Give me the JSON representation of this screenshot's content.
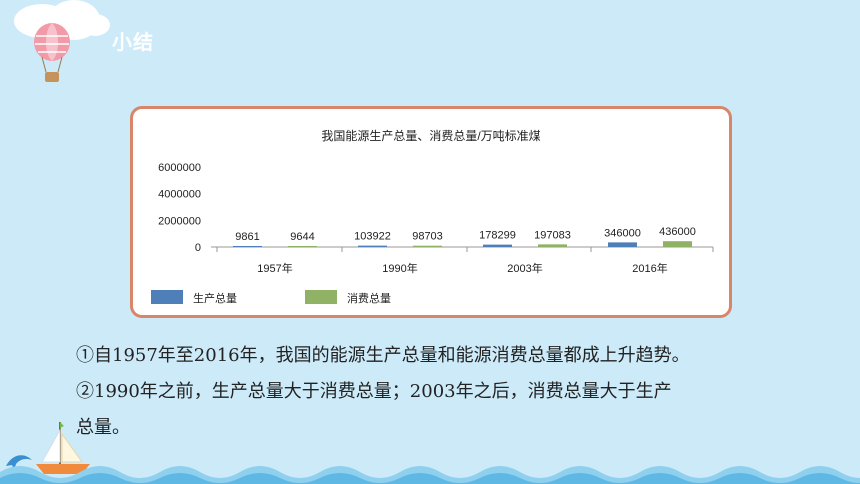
{
  "header": {
    "title": "小结"
  },
  "chart_data": {
    "type": "bar",
    "title": "我国能源生产总量、消费总量/万吨标准煤",
    "categories": [
      "1957年",
      "1990年",
      "2003年",
      "2016年"
    ],
    "series": [
      {
        "name": "生产总量",
        "values": [
          9861,
          103922,
          178299,
          346000
        ],
        "labels": [
          "9861",
          "103922",
          "178299",
          "346000"
        ],
        "color": "#4f7fb8"
      },
      {
        "name": "消费总量",
        "values": [
          9644,
          98703,
          197083,
          436000
        ],
        "labels": [
          "9644",
          "98703",
          "197083",
          "436000"
        ],
        "color": "#8fb265"
      }
    ],
    "yticks": [
      "6000000",
      "4000000",
      "2000000",
      "0"
    ],
    "ylim": [
      0,
      6000000
    ],
    "legend": "bottom-left",
    "grid": false
  },
  "summary": {
    "line1": "①自1957年至2016年，我国的能源生产总量和能源消费总量都成上升趋势。",
    "line2": "②1990年之前，生产总量大于消费总量；2003年之后，消费总量大于生产",
    "line3": "总量。"
  },
  "colors": {
    "background": "#cdeaf9",
    "card_border": "#d9856a",
    "wave": "#8fd0ee"
  },
  "icons": [
    "hot-air-balloon-icon",
    "sailboat-icon",
    "dolphin-icon"
  ]
}
